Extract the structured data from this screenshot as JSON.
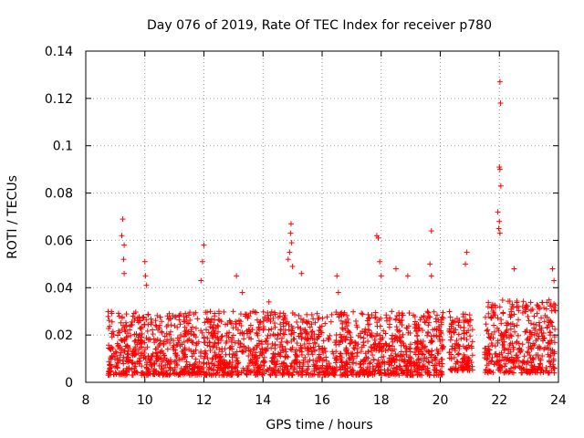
{
  "chart_data": {
    "type": "scatter",
    "title": "Day 076 of 2019, Rate Of TEC Index for receiver p780",
    "xlabel": "GPS time / hours",
    "ylabel": "ROTI / TECUs",
    "xlim": [
      8,
      24
    ],
    "ylim": [
      0,
      0.14
    ],
    "x_ticks": [
      8,
      10,
      12,
      14,
      16,
      18,
      20,
      22,
      24
    ],
    "y_ticks": [
      0,
      0.02,
      0.04,
      0.06,
      0.08,
      0.1,
      0.12,
      0.14
    ],
    "y_tick_labels": [
      "0",
      "0.02",
      "0.04",
      "0.06",
      "0.08",
      "0.1",
      "0.12",
      "0.14"
    ],
    "grid": true,
    "marker": "+",
    "color": "#ff0000",
    "notable_points": [
      {
        "x": 9.25,
        "y": 0.069
      },
      {
        "x": 9.22,
        "y": 0.062
      },
      {
        "x": 9.3,
        "y": 0.058
      },
      {
        "x": 9.28,
        "y": 0.052
      },
      {
        "x": 9.3,
        "y": 0.046
      },
      {
        "x": 10.0,
        "y": 0.051
      },
      {
        "x": 10.02,
        "y": 0.045
      },
      {
        "x": 10.05,
        "y": 0.041
      },
      {
        "x": 12.0,
        "y": 0.058
      },
      {
        "x": 11.95,
        "y": 0.051
      },
      {
        "x": 11.9,
        "y": 0.043
      },
      {
        "x": 13.1,
        "y": 0.045
      },
      {
        "x": 13.3,
        "y": 0.038
      },
      {
        "x": 14.2,
        "y": 0.034
      },
      {
        "x": 14.95,
        "y": 0.067
      },
      {
        "x": 14.93,
        "y": 0.063
      },
      {
        "x": 14.97,
        "y": 0.059
      },
      {
        "x": 14.9,
        "y": 0.055
      },
      {
        "x": 14.85,
        "y": 0.052
      },
      {
        "x": 15.0,
        "y": 0.049
      },
      {
        "x": 15.3,
        "y": 0.046
      },
      {
        "x": 16.5,
        "y": 0.045
      },
      {
        "x": 16.55,
        "y": 0.038
      },
      {
        "x": 17.85,
        "y": 0.062
      },
      {
        "x": 17.9,
        "y": 0.061
      },
      {
        "x": 17.95,
        "y": 0.051
      },
      {
        "x": 18.0,
        "y": 0.045
      },
      {
        "x": 18.5,
        "y": 0.048
      },
      {
        "x": 18.9,
        "y": 0.045
      },
      {
        "x": 19.7,
        "y": 0.064
      },
      {
        "x": 19.65,
        "y": 0.05
      },
      {
        "x": 19.7,
        "y": 0.045
      },
      {
        "x": 20.9,
        "y": 0.055
      },
      {
        "x": 20.85,
        "y": 0.05
      },
      {
        "x": 22.02,
        "y": 0.127
      },
      {
        "x": 22.04,
        "y": 0.118
      },
      {
        "x": 22.0,
        "y": 0.091
      },
      {
        "x": 22.02,
        "y": 0.09
      },
      {
        "x": 22.05,
        "y": 0.083
      },
      {
        "x": 21.95,
        "y": 0.072
      },
      {
        "x": 22.0,
        "y": 0.068
      },
      {
        "x": 21.98,
        "y": 0.065
      },
      {
        "x": 22.02,
        "y": 0.063
      },
      {
        "x": 22.5,
        "y": 0.048
      },
      {
        "x": 23.8,
        "y": 0.048
      },
      {
        "x": 23.85,
        "y": 0.043
      }
    ],
    "dense_segments": [
      {
        "x_start": 8.75,
        "x_end": 20.1,
        "y_min": 0.003,
        "y_typical_max": 0.03
      },
      {
        "x_start": 20.3,
        "x_end": 21.1,
        "y_min": 0.005,
        "y_typical_max": 0.03
      },
      {
        "x_start": 21.5,
        "x_end": 23.9,
        "y_min": 0.004,
        "y_typical_max": 0.035
      }
    ]
  }
}
